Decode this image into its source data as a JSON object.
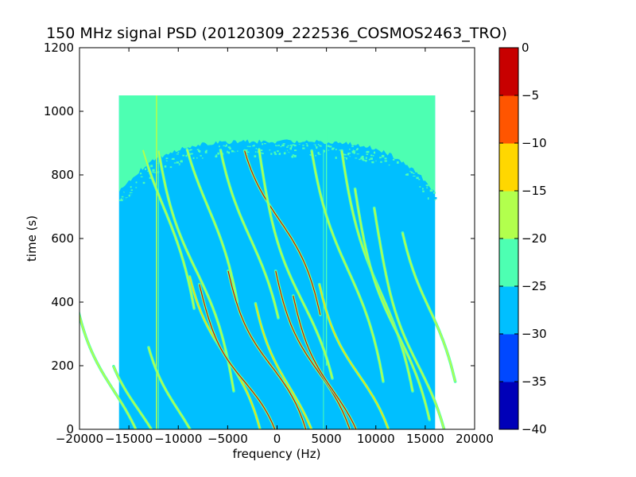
{
  "chart_data": {
    "type": "heatmap",
    "title": "150 MHz signal PSD (20120309_222536_COSMOS2463_TRO)",
    "xlabel": "frequency (Hz)",
    "ylabel": "time (s)",
    "xlim": [
      -20000,
      20000
    ],
    "ylim": [
      0,
      1200
    ],
    "x_ticks": [
      "−20000",
      "−15000",
      "−10000",
      "−5000",
      "0",
      "5000",
      "10000",
      "15000",
      "20000"
    ],
    "y_ticks": [
      "0",
      "200",
      "400",
      "600",
      "800",
      "1000",
      "1200"
    ],
    "data_extent": {
      "x": [
        -16000,
        16000
      ],
      "y": [
        0,
        1050
      ]
    },
    "colorbar": {
      "range": [
        -40,
        0
      ],
      "levels": [
        -40,
        -35,
        -30,
        -25,
        -20,
        -15,
        -10,
        -5,
        0
      ],
      "tick_labels": [
        "−40",
        "−35",
        "−30",
        "−25",
        "−20",
        "−15",
        "−10",
        "−5",
        "0"
      ],
      "colors": [
        "#0000b8",
        "#0048ff",
        "#00bfff",
        "#4dffb2",
        "#b2ff4d",
        "#ffd700",
        "#ff5500",
        "#c80000"
      ]
    },
    "grid": false
  }
}
